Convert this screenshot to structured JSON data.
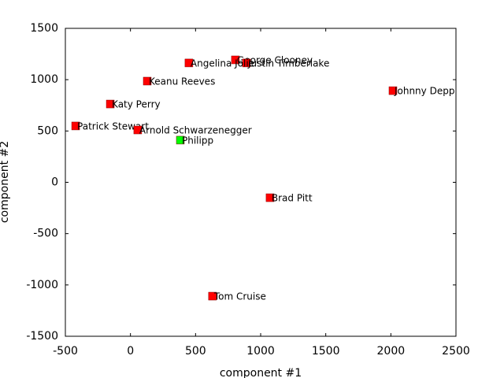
{
  "chart_data": {
    "type": "scatter",
    "x_label": "component #1",
    "y_label": "component #2",
    "xlim": [
      -500,
      2500
    ],
    "ylim": [
      -1500,
      1500
    ],
    "xticks": [
      -500,
      0,
      500,
      1000,
      1500,
      2000,
      2500
    ],
    "yticks": [
      -1500,
      -1000,
      -500,
      0,
      500,
      1000,
      1500
    ],
    "points": [
      {
        "label": "George Clooney",
        "x": 806,
        "y": 1193,
        "color": "#ff0000"
      },
      {
        "label": "Justin Timberlake",
        "x": 891,
        "y": 1163,
        "color": "#ff0000"
      },
      {
        "label": "Angelina Jolie",
        "x": 449,
        "y": 1163,
        "color": "#ff0000"
      },
      {
        "label": "Keanu Reeves",
        "x": 129,
        "y": 986,
        "color": "#ff0000"
      },
      {
        "label": "Johnny Depp",
        "x": 2016,
        "y": 893,
        "color": "#ff0000"
      },
      {
        "label": "Katy Perry",
        "x": -155,
        "y": 763,
        "color": "#ff0000"
      },
      {
        "label": "Patrick Stewart",
        "x": -421,
        "y": 549,
        "color": "#ff0000"
      },
      {
        "label": "Arnold Schwarzenegger",
        "x": 56,
        "y": 510,
        "color": "#ff0000"
      },
      {
        "label": "Philipp",
        "x": 383,
        "y": 411,
        "color": "#00ff00"
      },
      {
        "label": "Brad Pitt",
        "x": 1072,
        "y": -150,
        "color": "#ff0000"
      },
      {
        "label": "Tom Cruise",
        "x": 630,
        "y": -1109,
        "color": "#ff0000"
      }
    ]
  }
}
